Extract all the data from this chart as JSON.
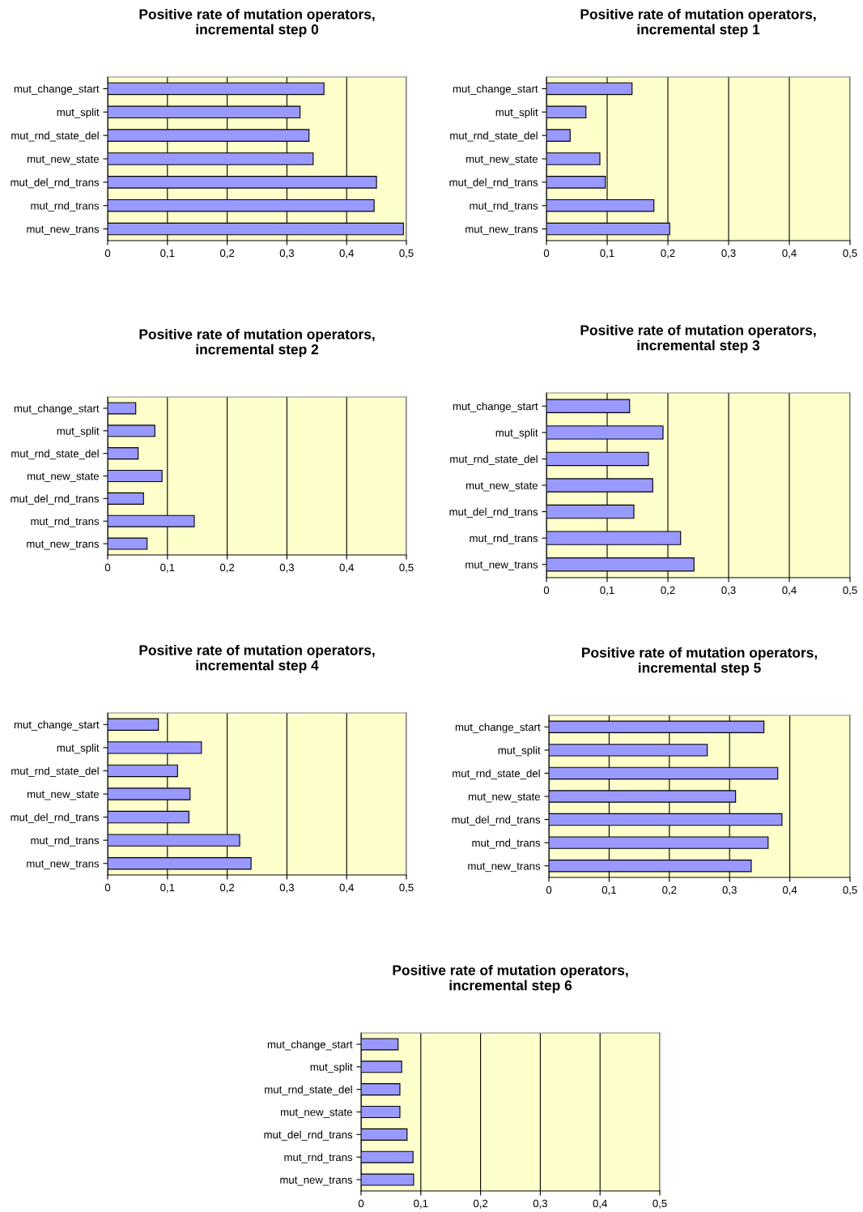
{
  "chart_data": [
    {
      "type": "bar",
      "orientation": "horizontal",
      "title": "Positive rate of mutation operators,\nincremental step 0",
      "categories": [
        "mut_change_start",
        "mut_split",
        "mut_rnd_state_del",
        "mut_new_state",
        "mut_del_rnd_trans",
        "mut_rnd_trans",
        "mut_new_trans"
      ],
      "values": [
        0.362,
        0.322,
        0.337,
        0.344,
        0.45,
        0.446,
        0.495
      ],
      "color": "#9999ff",
      "xlim": [
        0,
        0.5
      ],
      "xticks": [
        0,
        {
          "value": 0.1,
          "label": "0,1"
        },
        {
          "value": 0.2,
          "label": "0,2"
        },
        {
          "value": 0.3,
          "label": "0,3"
        },
        {
          "value": 0.4,
          "label": "0,4"
        },
        {
          "value": 0.5,
          "label": "0,5"
        }
      ],
      "grid": "x"
    },
    {
      "type": "bar",
      "orientation": "horizontal",
      "title": "Positive rate of mutation operators,\nincremental step 1",
      "categories": [
        "mut_change_start",
        "mut_split",
        "mut_rnd_state_del",
        "mut_new_state",
        "mut_del_rnd_trans",
        "mut_rnd_trans",
        "mut_new_trans"
      ],
      "values": [
        0.141,
        0.065,
        0.039,
        0.088,
        0.097,
        0.177,
        0.203
      ],
      "color": "#9999ff",
      "xlim": [
        0,
        0.5
      ],
      "xticks": [
        0,
        {
          "value": 0.1,
          "label": "0,1"
        },
        {
          "value": 0.2,
          "label": "0,2"
        },
        {
          "value": 0.3,
          "label": "0,3"
        },
        {
          "value": 0.4,
          "label": "0,4"
        },
        {
          "value": 0.5,
          "label": "0,5"
        }
      ],
      "grid": "x"
    },
    {
      "type": "bar",
      "orientation": "horizontal",
      "title": "Positive rate of mutation operators,\nincremental step 2",
      "categories": [
        "mut_change_start",
        "mut_split",
        "mut_rnd_state_del",
        "mut_new_state",
        "mut_del_rnd_trans",
        "mut_rnd_trans",
        "mut_new_trans"
      ],
      "values": [
        0.047,
        0.079,
        0.051,
        0.091,
        0.06,
        0.145,
        0.066
      ],
      "color": "#9999ff",
      "xlim": [
        0,
        0.5
      ],
      "xticks": [
        0,
        {
          "value": 0.1,
          "label": "0,1"
        },
        {
          "value": 0.2,
          "label": "0,2"
        },
        {
          "value": 0.3,
          "label": "0,3"
        },
        {
          "value": 0.4,
          "label": "0,4"
        },
        {
          "value": 0.5,
          "label": "0,5"
        }
      ],
      "grid": "x"
    },
    {
      "type": "bar",
      "orientation": "horizontal",
      "title": "Positive rate of mutation operators,\nincremental step 3",
      "categories": [
        "mut_change_start",
        "mut_split",
        "mut_rnd_state_del",
        "mut_new_state",
        "mut_del_rnd_trans",
        "mut_rnd_trans",
        "mut_new_trans"
      ],
      "values": [
        0.137,
        0.192,
        0.168,
        0.175,
        0.144,
        0.221,
        0.243
      ],
      "color": "#9999ff",
      "xlim": [
        0,
        0.5
      ],
      "xticks": [
        0,
        {
          "value": 0.1,
          "label": "0,1"
        },
        {
          "value": 0.2,
          "label": "0,2"
        },
        {
          "value": 0.3,
          "label": "0,3"
        },
        {
          "value": 0.4,
          "label": "0,4"
        },
        {
          "value": 0.5,
          "label": "0,5"
        }
      ],
      "grid": "x"
    },
    {
      "type": "bar",
      "orientation": "horizontal",
      "title": "Positive rate of mutation operators,\nincremental step 4",
      "categories": [
        "mut_change_start",
        "mut_split",
        "mut_rnd_state_del",
        "mut_new_state",
        "mut_del_rnd_trans",
        "mut_rnd_trans",
        "mut_new_trans"
      ],
      "values": [
        0.085,
        0.157,
        0.117,
        0.138,
        0.136,
        0.221,
        0.24
      ],
      "color": "#9999ff",
      "xlim": [
        0,
        0.5
      ],
      "xticks": [
        0,
        {
          "value": 0.1,
          "label": "0,1"
        },
        {
          "value": 0.2,
          "label": "0,2"
        },
        {
          "value": 0.3,
          "label": "0,3"
        },
        {
          "value": 0.4,
          "label": "0,4"
        },
        {
          "value": 0.5,
          "label": "0,5"
        }
      ],
      "grid": "x"
    },
    {
      "type": "bar",
      "orientation": "horizontal",
      "title": "Positive rate of mutation operators,\nincremental step 5",
      "categories": [
        "mut_change_start",
        "mut_split",
        "mut_rnd_state_del",
        "mut_new_state",
        "mut_del_rnd_trans",
        "mut_rnd_trans",
        "mut_new_trans"
      ],
      "values": [
        0.357,
        0.263,
        0.38,
        0.31,
        0.387,
        0.364,
        0.336
      ],
      "color": "#9999ff",
      "xlim": [
        0,
        0.5
      ],
      "xticks": [
        0,
        {
          "value": 0.1,
          "label": "0,1"
        },
        {
          "value": 0.2,
          "label": "0,2"
        },
        {
          "value": 0.3,
          "label": "0,3"
        },
        {
          "value": 0.4,
          "label": "0,4"
        },
        {
          "value": 0.5,
          "label": "0,5"
        }
      ],
      "grid": "x"
    },
    {
      "type": "bar",
      "orientation": "horizontal",
      "title": "Positive rate of mutation operators,\nincremental step 6",
      "categories": [
        "mut_change_start",
        "mut_split",
        "mut_rnd_state_del",
        "mut_new_state",
        "mut_del_rnd_trans",
        "mut_rnd_trans",
        "mut_new_trans"
      ],
      "values": [
        0.062,
        0.068,
        0.065,
        0.065,
        0.077,
        0.087,
        0.088
      ],
      "color": "#9999ff",
      "xlim": [
        0,
        0.5
      ],
      "xticks": [
        0,
        {
          "value": 0.1,
          "label": "0,1"
        },
        {
          "value": 0.2,
          "label": "0,2"
        },
        {
          "value": 0.3,
          "label": "0,3"
        },
        {
          "value": 0.4,
          "label": "0,4"
        },
        {
          "value": 0.5,
          "label": "0,5"
        }
      ],
      "grid": "x"
    }
  ]
}
